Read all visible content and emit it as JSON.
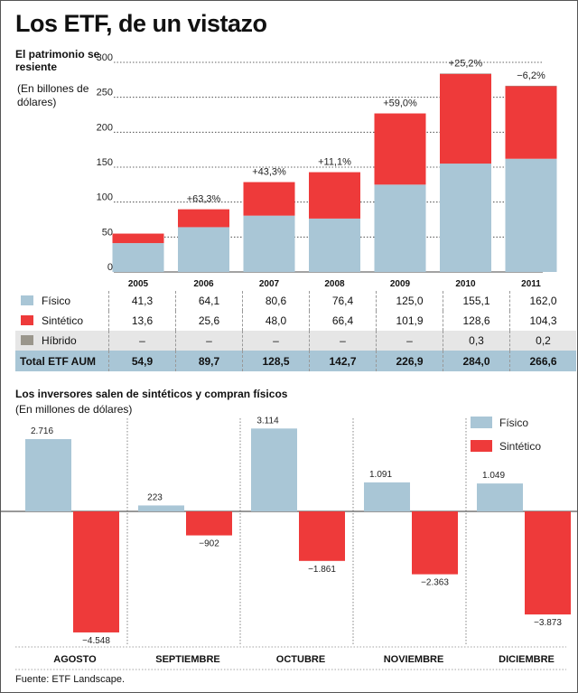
{
  "header": {
    "title": "Los ETF, de un vistazo"
  },
  "chart_data": [
    {
      "type": "bar",
      "title": "El patrimonio se resiente",
      "ylabel": "(En billones de dólares)",
      "categories": [
        "2005",
        "2006",
        "2007",
        "2008",
        "2009",
        "2010",
        "2011"
      ],
      "series": [
        {
          "name": "Físico",
          "values": [
            41.3,
            64.1,
            80.6,
            76.4,
            125.0,
            155.1,
            162.0
          ],
          "color": "#a9c6d6"
        },
        {
          "name": "Sintético",
          "values": [
            13.6,
            25.6,
            48.0,
            66.4,
            101.9,
            128.6,
            104.3
          ],
          "color": "#ee3a3a"
        },
        {
          "name": "Híbrido",
          "values": [
            null,
            null,
            null,
            null,
            null,
            0.3,
            0.2
          ],
          "color": "#9a968c"
        }
      ],
      "annotations": [
        "",
        "+63,3%",
        "+43,3%",
        "+11,1%",
        "+59,0%",
        "+25,2%",
        "−6,2%"
      ],
      "yticks": [
        "0",
        "50",
        "100",
        "150",
        "200",
        "250",
        "300"
      ],
      "ylim": [
        0,
        300
      ],
      "grid": true,
      "table": {
        "rows": [
          {
            "label": "Físico",
            "values": [
              "41,3",
              "64,1",
              "80,6",
              "76,4",
              "125,0",
              "155,1",
              "162,0"
            ]
          },
          {
            "label": "Sintético",
            "values": [
              "13,6",
              "25,6",
              "48,0",
              "66,4",
              "101,9",
              "128,6",
              "104,3"
            ]
          },
          {
            "label": "Híbrido",
            "values": [
              "–",
              "–",
              "–",
              "–",
              "–",
              "0,3",
              "0,2"
            ]
          }
        ],
        "total": {
          "label": "Total ETF AUM",
          "values": [
            "54,9",
            "89,7",
            "128,5",
            "142,7",
            "226,9",
            "284,0",
            "266,6"
          ]
        }
      }
    },
    {
      "type": "bar",
      "title": "Los inversores salen de sintéticos y compran físicos",
      "ylabel": "(En millones de dólares)",
      "categories": [
        "AGOSTO",
        "SEPTIEMBRE",
        "OCTUBRE",
        "NOVIEMBRE",
        "DICIEMBRE"
      ],
      "series": [
        {
          "name": "Físico",
          "values": [
            2716,
            223,
            3114,
            1091,
            1049
          ],
          "labels": [
            "2.716",
            "223",
            "3.114",
            "1.091",
            "1.049"
          ],
          "color": "#a9c6d6"
        },
        {
          "name": "Sintético",
          "values": [
            -4548,
            -902,
            -1861,
            -2363,
            -3873
          ],
          "labels": [
            "−4.548",
            "−902",
            "−1.861",
            "−2.363",
            "−3.873"
          ],
          "color": "#ee3a3a"
        }
      ],
      "legend": "top-right"
    }
  ],
  "footer": {
    "source": "Fuente: ETF Landscape."
  }
}
